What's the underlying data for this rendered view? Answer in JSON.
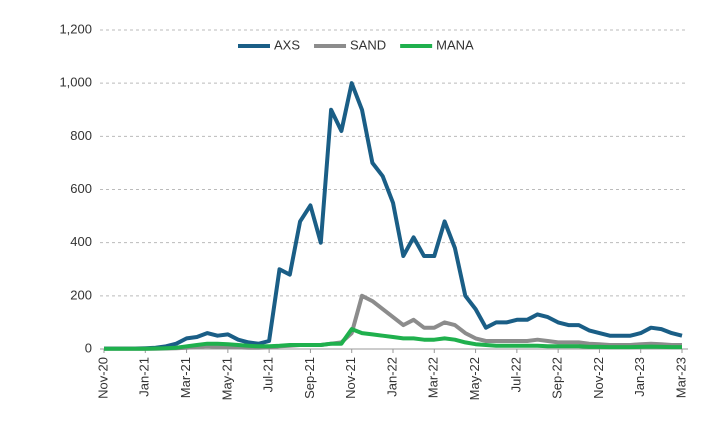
{
  "chart_data": {
    "type": "line",
    "categories": [
      "Nov-20",
      null,
      null,
      null,
      "Jan-21",
      null,
      null,
      null,
      "Mar-21",
      null,
      null,
      null,
      "May-21",
      null,
      null,
      null,
      "Jul-21",
      null,
      null,
      null,
      "Sep-21",
      null,
      null,
      null,
      "Nov-21",
      null,
      null,
      null,
      "Jan-22",
      null,
      null,
      null,
      "Mar-22",
      null,
      null,
      null,
      "May-22",
      null,
      null,
      null,
      "Jul-22",
      null,
      null,
      null,
      "Sep-22",
      null,
      null,
      null,
      "Nov-22",
      null,
      null,
      null,
      "Jan-23",
      null,
      null,
      null,
      "Mar-23"
    ],
    "series": [
      {
        "name": "AXS",
        "color": "#1a5e86",
        "values": [
          2,
          2,
          2,
          2,
          3,
          5,
          10,
          20,
          40,
          45,
          60,
          50,
          55,
          35,
          25,
          20,
          30,
          300,
          280,
          480,
          540,
          400,
          900,
          820,
          1000,
          900,
          700,
          650,
          550,
          350,
          420,
          350,
          350,
          480,
          380,
          200,
          150,
          80,
          100,
          100,
          110,
          110,
          130,
          120,
          100,
          90,
          90,
          70,
          60,
          50,
          50,
          50,
          60,
          80,
          75,
          60,
          50
        ]
      },
      {
        "name": "SAND",
        "color": "#8c8c8c",
        "values": [
          1,
          1,
          1,
          1,
          1,
          1,
          2,
          3,
          5,
          8,
          10,
          8,
          8,
          6,
          5,
          5,
          6,
          10,
          12,
          15,
          15,
          15,
          20,
          25,
          60,
          200,
          180,
          150,
          120,
          90,
          110,
          80,
          80,
          100,
          90,
          60,
          40,
          30,
          30,
          30,
          30,
          30,
          35,
          30,
          25,
          25,
          25,
          20,
          18,
          15,
          15,
          15,
          18,
          20,
          18,
          15,
          15
        ]
      },
      {
        "name": "MANA",
        "color": "#1fb04d",
        "values": [
          1,
          1,
          1,
          1,
          1,
          2,
          3,
          5,
          10,
          15,
          20,
          20,
          18,
          15,
          12,
          10,
          10,
          12,
          15,
          15,
          15,
          15,
          20,
          20,
          75,
          60,
          55,
          50,
          45,
          40,
          40,
          35,
          35,
          40,
          35,
          25,
          18,
          15,
          12,
          12,
          12,
          12,
          12,
          10,
          10,
          10,
          10,
          8,
          8,
          7,
          7,
          7,
          8,
          9,
          8,
          7,
          7
        ]
      }
    ],
    "ylim": [
      0,
      1200
    ],
    "yticks": [
      0,
      200,
      400,
      600,
      800,
      {
        "value": 1000,
        "label": "1,000"
      },
      {
        "value": 1200,
        "label": "1,200"
      }
    ],
    "grid": true,
    "legend": "top"
  }
}
